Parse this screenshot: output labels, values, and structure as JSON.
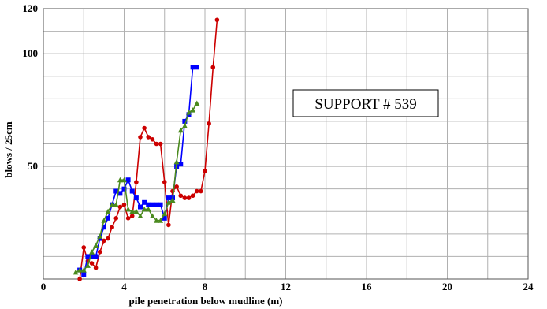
{
  "chart_data": {
    "type": "line",
    "title": "",
    "xlabel": "pile penetration below mudline (m)",
    "ylabel": "blows / 25cm",
    "xlim": [
      0,
      24
    ],
    "ylim": [
      0,
      120
    ],
    "xticks": [
      0,
      4,
      8,
      12,
      16,
      20,
      24
    ],
    "yticks": [
      50,
      100,
      120
    ],
    "x_gridlines": [
      0,
      2,
      4,
      6,
      8,
      10,
      12,
      14,
      16,
      18,
      20,
      22,
      24
    ],
    "y_gridlines": [
      0,
      10,
      20,
      30,
      40,
      50,
      60,
      70,
      80,
      90,
      100,
      110,
      120
    ],
    "grid": true,
    "legend": "none",
    "annotation": "SUPPORT # 539",
    "series": [
      {
        "color": "#cc0000",
        "marker": "circle",
        "points": [
          [
            1.8,
            0
          ],
          [
            2.0,
            14
          ],
          [
            2.2,
            8
          ],
          [
            2.4,
            7
          ],
          [
            2.6,
            5
          ],
          [
            2.8,
            12
          ],
          [
            3.0,
            17
          ],
          [
            3.2,
            18
          ],
          [
            3.4,
            23
          ],
          [
            3.6,
            27
          ],
          [
            3.8,
            32
          ],
          [
            4.0,
            33
          ],
          [
            4.2,
            27
          ],
          [
            4.4,
            28
          ],
          [
            4.6,
            43
          ],
          [
            4.8,
            63
          ],
          [
            5.0,
            67
          ],
          [
            5.2,
            63
          ],
          [
            5.4,
            62
          ],
          [
            5.6,
            60
          ],
          [
            5.8,
            60
          ],
          [
            6.0,
            43
          ],
          [
            6.2,
            24
          ],
          [
            6.4,
            39
          ],
          [
            6.6,
            41
          ],
          [
            6.8,
            37
          ],
          [
            7.0,
            36
          ],
          [
            7.2,
            36
          ],
          [
            7.4,
            37
          ],
          [
            7.6,
            39
          ],
          [
            7.8,
            39
          ],
          [
            8.0,
            48
          ],
          [
            8.2,
            69
          ],
          [
            8.4,
            94
          ],
          [
            8.6,
            115
          ]
        ]
      },
      {
        "color": "#0000ff",
        "marker": "square",
        "points": [
          [
            1.8,
            4
          ],
          [
            2.0,
            2
          ],
          [
            2.2,
            10
          ],
          [
            2.4,
            10
          ],
          [
            2.6,
            10
          ],
          [
            2.8,
            18
          ],
          [
            3.0,
            23
          ],
          [
            3.2,
            27
          ],
          [
            3.4,
            33
          ],
          [
            3.6,
            39
          ],
          [
            3.8,
            38
          ],
          [
            4.0,
            40
          ],
          [
            4.2,
            44
          ],
          [
            4.4,
            39
          ],
          [
            4.6,
            36
          ],
          [
            4.8,
            32
          ],
          [
            5.0,
            34
          ],
          [
            5.2,
            33
          ],
          [
            5.4,
            33
          ],
          [
            5.6,
            33
          ],
          [
            5.8,
            33
          ],
          [
            6.0,
            27
          ],
          [
            6.2,
            36
          ],
          [
            6.4,
            36
          ],
          [
            6.6,
            50
          ],
          [
            6.8,
            51
          ],
          [
            7.0,
            70
          ],
          [
            7.2,
            73
          ],
          [
            7.4,
            94
          ],
          [
            7.6,
            94
          ]
        ]
      },
      {
        "color": "#4a8a1e",
        "marker": "triangle",
        "points": [
          [
            1.6,
            3
          ],
          [
            1.8,
            4
          ],
          [
            2.0,
            4
          ],
          [
            2.2,
            6
          ],
          [
            2.4,
            12
          ],
          [
            2.6,
            15
          ],
          [
            2.8,
            19
          ],
          [
            3.0,
            26
          ],
          [
            3.2,
            30
          ],
          [
            3.4,
            33
          ],
          [
            3.6,
            33
          ],
          [
            3.8,
            44
          ],
          [
            4.0,
            44
          ],
          [
            4.2,
            31
          ],
          [
            4.4,
            30
          ],
          [
            4.6,
            30
          ],
          [
            4.8,
            28
          ],
          [
            5.0,
            31
          ],
          [
            5.2,
            31
          ],
          [
            5.4,
            28
          ],
          [
            5.6,
            26
          ],
          [
            5.8,
            26
          ],
          [
            6.0,
            29
          ],
          [
            6.2,
            34
          ],
          [
            6.4,
            35
          ],
          [
            6.6,
            52
          ],
          [
            6.8,
            66
          ],
          [
            7.0,
            68
          ],
          [
            7.2,
            74
          ],
          [
            7.4,
            75
          ],
          [
            7.6,
            78
          ]
        ]
      }
    ]
  }
}
